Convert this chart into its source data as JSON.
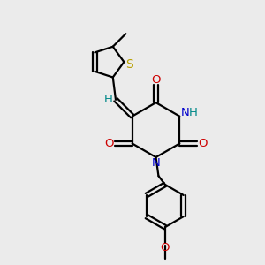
{
  "bg_color": "#ebebeb",
  "bond_color": "#000000",
  "N_color": "#0000cc",
  "O_color": "#cc0000",
  "S_color": "#b8a000",
  "H_color": "#008888",
  "line_width": 1.6,
  "figsize": [
    3.0,
    3.0
  ],
  "dpi": 100,
  "xlim": [
    0,
    10
  ],
  "ylim": [
    0,
    10
  ]
}
